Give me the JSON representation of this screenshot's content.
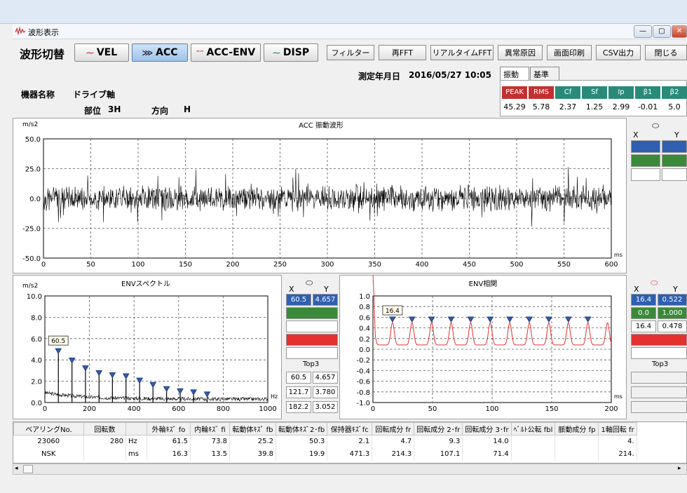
{
  "window": {
    "title": "波形表示",
    "controls": [
      "—",
      "▢",
      "✕"
    ]
  },
  "toolbar": {
    "switch_label": "波形切替",
    "wave_buttons": [
      {
        "label": "VEL",
        "icon": "wave-icon"
      },
      {
        "label": "ACC",
        "icon": "wave-icon",
        "active": true
      },
      {
        "label": "ACC-ENV",
        "icon": "wave-icon"
      },
      {
        "label": "DISP",
        "icon": "wave-icon"
      }
    ],
    "action_buttons": [
      "フィルター",
      "再FFT",
      "リアルタイムFFT",
      "異常原因",
      "画面印刷",
      "CSV出力",
      "閉じる"
    ]
  },
  "info": {
    "measure_date_label": "測定年月日",
    "measure_date": "2016/05/27 10:05",
    "machine_label": "機器名称",
    "machine_value": "ドライブ軸",
    "part_label": "部位",
    "part_value": "3H",
    "direction_label": "方向",
    "direction_value": "H"
  },
  "tabs": [
    "振動値",
    "基準値"
  ],
  "vibration": {
    "headers": [
      {
        "label": "PEAK",
        "color": "#c43030"
      },
      {
        "label": "RMS",
        "color": "#c43030"
      },
      {
        "label": "Cf",
        "color": "#2a8a7a"
      },
      {
        "label": "Sf",
        "color": "#2a8a7a"
      },
      {
        "label": "Ip",
        "color": "#2a8a7a"
      },
      {
        "label": "β1",
        "color": "#2a8a7a"
      },
      {
        "label": "β2",
        "color": "#2a8a7a"
      }
    ],
    "values": [
      "45.29",
      "5.78",
      "2.37",
      "1.25",
      "2.99",
      "-0.01",
      "5.0"
    ]
  },
  "charts": {
    "wave": {
      "title": "ACC 振動波形",
      "unit": "m/s2",
      "x_unit": "ms",
      "y_ticks": [
        "50.0",
        "25.0",
        "0.0",
        "-25.0",
        "-50.0"
      ],
      "x_ticks": [
        "0",
        "50",
        "100",
        "150",
        "200",
        "250",
        "300",
        "350",
        "400",
        "450",
        "500",
        "550",
        "600"
      ]
    },
    "env_spectrum": {
      "title": "ENVスペクトル",
      "unit": "m/s2",
      "x_unit": "Hz",
      "y_ticks": [
        "10.0",
        "8.0",
        "6.0",
        "4.0",
        "2.0",
        "0.0"
      ],
      "x_ticks": [
        "0",
        "200",
        "400",
        "600",
        "800",
        "1000"
      ],
      "marker_label": "60.5"
    },
    "env_corr": {
      "title": "ENV相関",
      "x_unit": "ms",
      "y_ticks": [
        "1.0",
        "0.8",
        "0.6",
        "0.4",
        "0.2",
        "0.0",
        "-0.2",
        "-0.4",
        "-0.6",
        "-0.8",
        "-1.0"
      ],
      "x_ticks": [
        "0",
        "50",
        "100",
        "150",
        "200"
      ],
      "marker_label": "16.4"
    }
  },
  "chart_data": [
    {
      "type": "line",
      "title": "ACC 振動波形",
      "ylabel": "m/s2",
      "xlabel": "ms",
      "xlim": [
        0,
        600
      ],
      "ylim": [
        -50,
        50
      ],
      "series": [
        {
          "values": [
            -30,
            30
          ]
        }
      ],
      "grid": true
    },
    {
      "type": "bar",
      "title": "ENVスペクトル",
      "ylabel": "m/s2",
      "xlabel": "Hz",
      "xlim": [
        0,
        1000
      ],
      "ylim": [
        0,
        10
      ],
      "x": [
        60.5,
        121.7,
        182.2,
        243,
        303,
        364,
        425,
        485,
        546,
        607,
        667,
        728
      ],
      "values": [
        4.66,
        3.78,
        3.05,
        2.6,
        2.4,
        2.3,
        1.9,
        1.5,
        1.1,
        0.9,
        0.8,
        0.6
      ],
      "grid": true
    },
    {
      "type": "line",
      "title": "ENV相関",
      "xlabel": "ms",
      "xlim": [
        0,
        200
      ],
      "ylim": [
        -1,
        1
      ],
      "peaks_x": [
        16.4,
        32.8,
        49.2,
        65.6,
        82.0,
        98.4,
        114.8,
        131.2,
        147.6,
        164.0,
        180.4
      ],
      "grid": true
    }
  ],
  "wave_cursor": {
    "x_label": "X",
    "y_label": "Y",
    "colors": [
      "#2f5fb0",
      "#3a8a3a"
    ]
  },
  "spec_cursor": {
    "x_label": "X",
    "y_label": "Y",
    "cursor1": {
      "x": "60.5",
      "y": "4.657"
    },
    "top3_label": "Top3",
    "top3": [
      {
        "x": "60.5",
        "y": "4.657"
      },
      {
        "x": "121.7",
        "y": "3.780"
      },
      {
        "x": "182.2",
        "y": "3.052"
      }
    ]
  },
  "corr_cursor": {
    "x_label": "X",
    "y_label": "Y",
    "cursor1": {
      "x": "16.4",
      "y": "0.522"
    },
    "cursor2": {
      "x": "0.0",
      "y": "1.000"
    },
    "diff": {
      "x": "16.4",
      "y": "0.478"
    },
    "top3_label": "Top3"
  },
  "table": {
    "headers": [
      "ベアリングNo.",
      "回転数",
      "",
      "外輪ｷｽﾞ fo",
      "内輪ｷｽﾞ fi",
      "転動体ｷｽﾞ fb",
      "転動体ｷｽﾞ2･fb",
      "保持器ｷｽﾞfc",
      "回転成分 fr",
      "回転成分 2･fr",
      "回転成分 3･fr",
      "ﾍﾞﾙﾄ公転 fbl",
      "脈動成分 fp",
      "1軸回転 fr"
    ],
    "rows": [
      [
        "23060",
        "280",
        "Hz",
        "61.5",
        "73.8",
        "25.2",
        "50.3",
        "2.1",
        "4.7",
        "9.3",
        "14.0",
        "",
        "",
        "4."
      ],
      [
        "NSK",
        "",
        "ms",
        "16.3",
        "13.5",
        "39.8",
        "19.9",
        "471.3",
        "214.3",
        "107.1",
        "71.4",
        "",
        "",
        "214."
      ]
    ]
  }
}
